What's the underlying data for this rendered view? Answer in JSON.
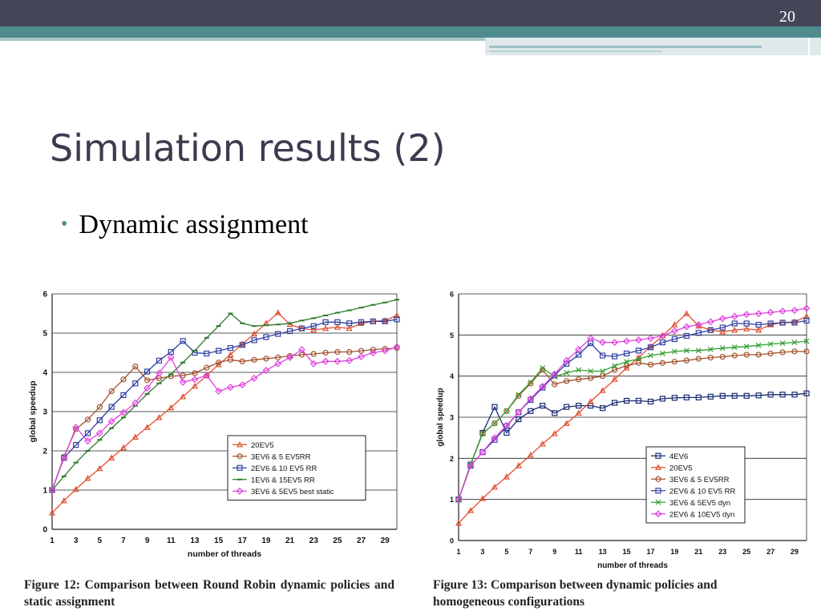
{
  "slide": {
    "number": "20",
    "title": "Simulation results (2)",
    "bullet": "Dynamic assignment",
    "colors": {
      "top_bar": "#454558",
      "accent": "#4f8a8f",
      "title_text": "#3b3b4f"
    }
  },
  "chart_data": [
    {
      "type": "line",
      "caption": "Figure 12: Comparison between Round Robin dynamic policies and static assignment",
      "xlabel": "number of threads",
      "ylabel": "global speedup",
      "xlim": [
        1,
        30
      ],
      "ylim": [
        0,
        6
      ],
      "xticks": [
        1,
        3,
        5,
        7,
        9,
        11,
        13,
        15,
        17,
        19,
        21,
        23,
        25,
        27,
        29
      ],
      "yticks": [
        0,
        1,
        2,
        3,
        4,
        5,
        6
      ],
      "grid": "horizontal",
      "legend_position": "lower-right",
      "series": [
        {
          "name": "20EV5",
          "color": "#e05030",
          "marker": "triangle",
          "x": [
            1,
            2,
            3,
            4,
            5,
            6,
            7,
            8,
            9,
            10,
            11,
            12,
            13,
            14,
            15,
            16,
            17,
            18,
            19,
            20,
            21,
            22,
            23,
            24,
            25,
            26,
            27,
            28,
            29,
            30
          ],
          "values": [
            0.42,
            0.73,
            1.02,
            1.3,
            1.55,
            1.82,
            2.08,
            2.35,
            2.6,
            2.85,
            3.1,
            3.38,
            3.65,
            3.92,
            4.2,
            4.45,
            4.72,
            4.98,
            5.25,
            5.52,
            5.22,
            5.12,
            5.08,
            5.12,
            5.15,
            5.12,
            5.25,
            5.3,
            5.32,
            5.45
          ]
        },
        {
          "name": "3EV6 & 5 EV5RR",
          "color": "#a0522d",
          "marker": "circle",
          "x": [
            1,
            2,
            3,
            4,
            5,
            6,
            7,
            8,
            9,
            10,
            11,
            12,
            13,
            14,
            15,
            16,
            17,
            18,
            19,
            20,
            21,
            22,
            23,
            24,
            25,
            26,
            27,
            28,
            29,
            30
          ],
          "values": [
            1.0,
            1.85,
            2.55,
            2.8,
            3.12,
            3.52,
            3.82,
            4.15,
            3.8,
            3.85,
            3.9,
            3.92,
            3.98,
            4.12,
            4.25,
            4.32,
            4.28,
            4.32,
            4.35,
            4.38,
            4.42,
            4.45,
            4.47,
            4.5,
            4.52,
            4.52,
            4.55,
            4.58,
            4.6,
            4.62
          ]
        },
        {
          "name": "2EV6 & 10 EV5 RR",
          "color": "#3040a0",
          "marker": "square",
          "x": [
            1,
            2,
            3,
            4,
            5,
            6,
            7,
            8,
            9,
            10,
            11,
            12,
            13,
            14,
            15,
            16,
            17,
            18,
            19,
            20,
            21,
            22,
            23,
            24,
            25,
            26,
            27,
            28,
            29,
            30
          ],
          "values": [
            1.0,
            1.82,
            2.15,
            2.45,
            2.78,
            3.12,
            3.42,
            3.72,
            4.02,
            4.3,
            4.52,
            4.8,
            4.5,
            4.48,
            4.55,
            4.62,
            4.7,
            4.82,
            4.9,
            4.98,
            5.05,
            5.12,
            5.18,
            5.28,
            5.28,
            5.25,
            5.28,
            5.3,
            5.3,
            5.35
          ]
        },
        {
          "name": "1EV6 & 15EV5 RR",
          "color": "#2a7a2a",
          "marker": "dash",
          "x": [
            1,
            2,
            3,
            4,
            5,
            6,
            7,
            8,
            9,
            10,
            11,
            12,
            13,
            14,
            15,
            16,
            17,
            18,
            19,
            20,
            21,
            22,
            23,
            24,
            25,
            26,
            27,
            28,
            29,
            30
          ],
          "values": [
            1.0,
            1.35,
            1.7,
            2.0,
            2.28,
            2.58,
            2.85,
            3.15,
            3.45,
            3.72,
            3.95,
            4.25,
            4.55,
            4.88,
            5.18,
            5.5,
            5.25,
            5.18,
            5.2,
            5.22,
            5.25,
            5.32,
            5.38,
            5.45,
            5.52,
            5.58,
            5.65,
            5.72,
            5.78,
            5.85
          ]
        },
        {
          "name": "3EV6 & 5EV5 best static",
          "color": "#e040e0",
          "marker": "diamond",
          "x": [
            1,
            2,
            3,
            4,
            5,
            6,
            7,
            8,
            9,
            10,
            11,
            12,
            13,
            14,
            15,
            16,
            17,
            18,
            19,
            20,
            21,
            22,
            23,
            24,
            25,
            26,
            27,
            28,
            29,
            30
          ],
          "values": [
            1.0,
            1.82,
            2.6,
            2.25,
            2.45,
            2.75,
            2.98,
            3.22,
            3.6,
            3.98,
            4.38,
            3.75,
            3.82,
            3.92,
            3.52,
            3.62,
            3.68,
            3.85,
            4.05,
            4.22,
            4.38,
            4.58,
            4.22,
            4.28,
            4.28,
            4.3,
            4.4,
            4.5,
            4.55,
            4.65
          ]
        }
      ]
    },
    {
      "type": "line",
      "caption": "Figure 13: Comparison between dynamic policies and homogeneous configurations",
      "xlabel": "number of threads",
      "ylabel": "global speedup",
      "xlim": [
        1,
        30
      ],
      "ylim": [
        0,
        6
      ],
      "xticks": [
        1,
        3,
        5,
        7,
        9,
        11,
        13,
        15,
        17,
        19,
        21,
        23,
        25,
        27,
        29
      ],
      "yticks": [
        0,
        1,
        2,
        3,
        4,
        5,
        6
      ],
      "grid": "horizontal",
      "legend_position": "lower-right",
      "series": [
        {
          "name": "4EV6",
          "color": "#1a2a70",
          "marker": "square",
          "x": [
            1,
            2,
            3,
            4,
            5,
            6,
            7,
            8,
            9,
            10,
            11,
            12,
            13,
            14,
            15,
            16,
            17,
            18,
            19,
            20,
            21,
            22,
            23,
            24,
            25,
            26,
            27,
            28,
            29,
            30
          ],
          "values": [
            1.0,
            1.85,
            2.62,
            3.25,
            2.62,
            2.95,
            3.15,
            3.28,
            3.1,
            3.25,
            3.28,
            3.28,
            3.22,
            3.35,
            3.4,
            3.4,
            3.38,
            3.45,
            3.47,
            3.48,
            3.48,
            3.5,
            3.52,
            3.52,
            3.52,
            3.53,
            3.55,
            3.55,
            3.55,
            3.58
          ]
        },
        {
          "name": "20EV5",
          "color": "#e05030",
          "marker": "triangle",
          "x": [
            1,
            2,
            3,
            4,
            5,
            6,
            7,
            8,
            9,
            10,
            11,
            12,
            13,
            14,
            15,
            16,
            17,
            18,
            19,
            20,
            21,
            22,
            23,
            24,
            25,
            26,
            27,
            28,
            29,
            30
          ],
          "values": [
            0.42,
            0.73,
            1.02,
            1.3,
            1.55,
            1.82,
            2.08,
            2.35,
            2.6,
            2.85,
            3.1,
            3.38,
            3.65,
            3.92,
            4.2,
            4.45,
            4.72,
            4.98,
            5.25,
            5.52,
            5.22,
            5.12,
            5.08,
            5.12,
            5.15,
            5.12,
            5.25,
            5.3,
            5.32,
            5.45
          ]
        },
        {
          "name": "3EV6 & 5 EV5RR",
          "color": "#a0522d",
          "marker": "circle",
          "x": [
            1,
            2,
            3,
            4,
            5,
            6,
            7,
            8,
            9,
            10,
            11,
            12,
            13,
            14,
            15,
            16,
            17,
            18,
            19,
            20,
            21,
            22,
            23,
            24,
            25,
            26,
            27,
            28,
            29,
            30
          ],
          "values": [
            1.0,
            1.85,
            2.6,
            2.85,
            3.15,
            3.52,
            3.82,
            4.15,
            3.8,
            3.88,
            3.92,
            3.95,
            4.0,
            4.15,
            4.25,
            4.32,
            4.28,
            4.32,
            4.35,
            4.38,
            4.42,
            4.45,
            4.47,
            4.5,
            4.52,
            4.52,
            4.55,
            4.58,
            4.6,
            4.6
          ]
        },
        {
          "name": "2EV6 & 10 EV5 RR",
          "color": "#3040a0",
          "marker": "square",
          "x": [
            1,
            2,
            3,
            4,
            5,
            6,
            7,
            8,
            9,
            10,
            11,
            12,
            13,
            14,
            15,
            16,
            17,
            18,
            19,
            20,
            21,
            22,
            23,
            24,
            25,
            26,
            27,
            28,
            29,
            30
          ],
          "values": [
            1.0,
            1.82,
            2.15,
            2.45,
            2.78,
            3.12,
            3.42,
            3.72,
            4.02,
            4.3,
            4.52,
            4.8,
            4.5,
            4.48,
            4.55,
            4.62,
            4.7,
            4.82,
            4.9,
            4.98,
            5.05,
            5.12,
            5.18,
            5.28,
            5.28,
            5.25,
            5.28,
            5.3,
            5.3,
            5.35
          ]
        },
        {
          "name": "3EV6 & 5EV5 dyn",
          "color": "#30a030",
          "marker": "x",
          "x": [
            1,
            2,
            3,
            4,
            5,
            6,
            7,
            8,
            9,
            10,
            11,
            12,
            13,
            14,
            15,
            16,
            17,
            18,
            19,
            20,
            21,
            22,
            23,
            24,
            25,
            26,
            27,
            28,
            29,
            30
          ],
          "values": [
            1.0,
            1.85,
            2.6,
            2.85,
            3.15,
            3.55,
            3.85,
            4.2,
            3.98,
            4.08,
            4.15,
            4.12,
            4.12,
            4.25,
            4.35,
            4.42,
            4.5,
            4.55,
            4.6,
            4.62,
            4.62,
            4.65,
            4.68,
            4.7,
            4.72,
            4.75,
            4.78,
            4.8,
            4.82,
            4.85
          ]
        },
        {
          "name": "2EV6 & 10EV5 dyn",
          "color": "#e040e0",
          "marker": "diamond",
          "x": [
            1,
            2,
            3,
            4,
            5,
            6,
            7,
            8,
            9,
            10,
            11,
            12,
            13,
            14,
            15,
            16,
            17,
            18,
            19,
            20,
            21,
            22,
            23,
            24,
            25,
            26,
            27,
            28,
            29,
            30
          ],
          "values": [
            1.0,
            1.82,
            2.15,
            2.5,
            2.8,
            3.12,
            3.45,
            3.75,
            4.05,
            4.38,
            4.65,
            4.92,
            4.82,
            4.82,
            4.85,
            4.88,
            4.92,
            4.98,
            5.1,
            5.2,
            5.25,
            5.32,
            5.4,
            5.45,
            5.5,
            5.52,
            5.55,
            5.58,
            5.6,
            5.65
          ]
        }
      ]
    }
  ]
}
